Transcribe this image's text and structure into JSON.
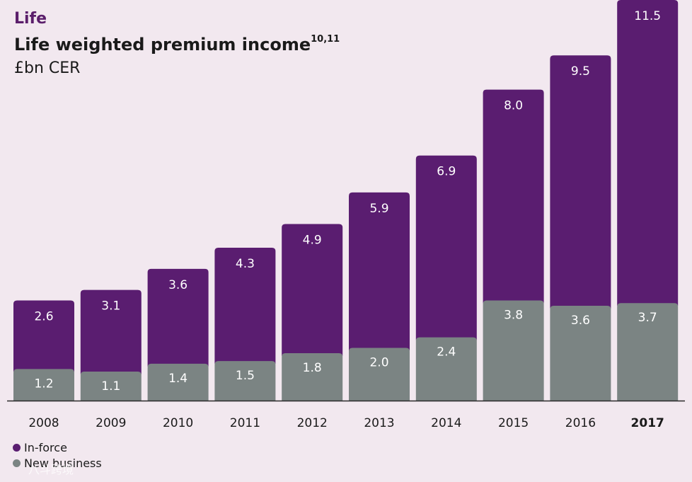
{
  "header": {
    "section": "Life",
    "title": "Life weighted premium income",
    "title_superscript": "10,11",
    "subtitle": "£bn CER"
  },
  "colors": {
    "in_force": "#5a1d70",
    "new_business": "#7b8483",
    "background": "#f2e8ef"
  },
  "legend": {
    "in_force": "In-force",
    "new_business": "New business"
  },
  "watermark": "八斗跨境",
  "chart_data": {
    "type": "bar",
    "stacked": true,
    "categories": [
      "2008",
      "2009",
      "2010",
      "2011",
      "2012",
      "2013",
      "2014",
      "2015",
      "2016",
      "2017"
    ],
    "highlight_category": "2017",
    "series": [
      {
        "name": "New business",
        "values": [
          1.2,
          1.1,
          1.4,
          1.5,
          1.8,
          2.0,
          2.4,
          3.8,
          3.6,
          3.7
        ]
      },
      {
        "name": "In-force",
        "values": [
          2.6,
          3.1,
          3.6,
          4.3,
          4.9,
          5.9,
          6.9,
          8.0,
          9.5,
          11.5
        ]
      }
    ],
    "title": "Life weighted premium income",
    "ylabel": "£bn CER",
    "ylim": [
      0,
      15.2
    ],
    "grid": false,
    "legend_position": "bottom-left"
  }
}
